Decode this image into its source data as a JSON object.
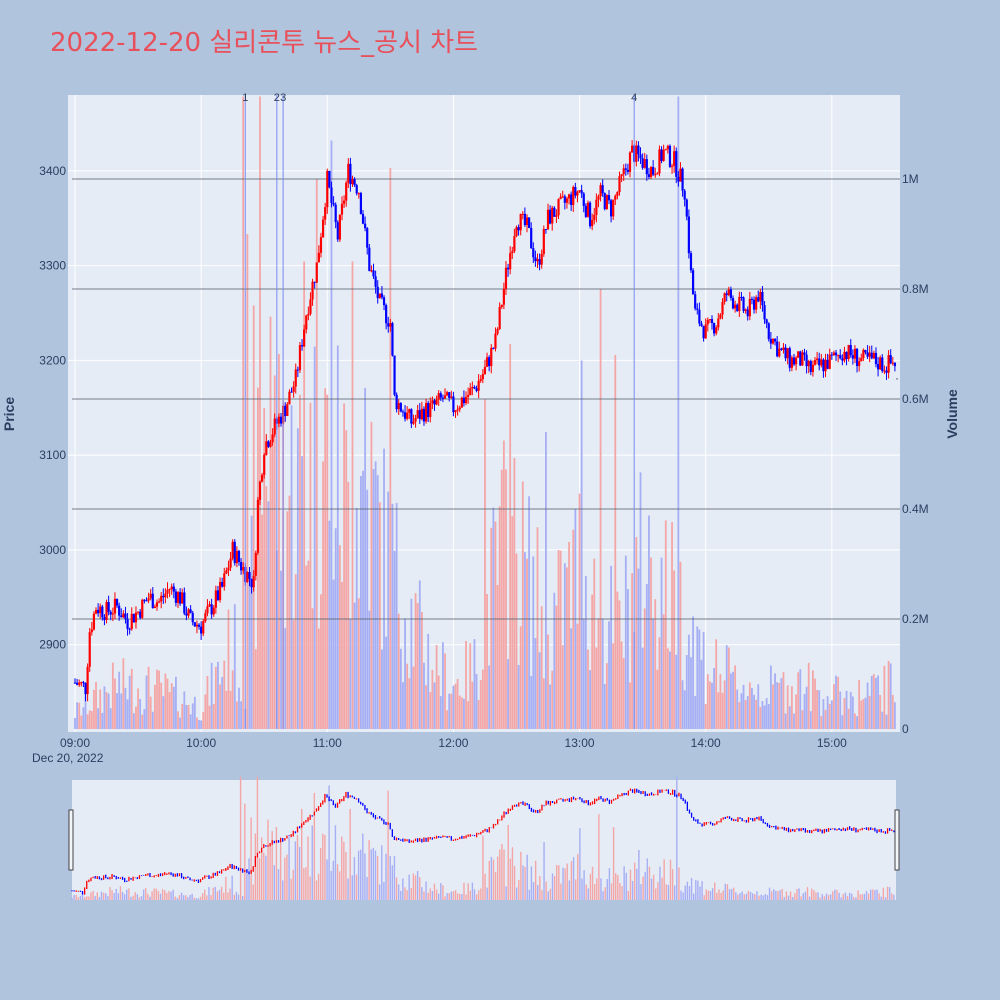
{
  "title": "2022-12-20 실리콘투 뉴스_공시 차트",
  "chart_data": {
    "type": "candlestick",
    "title": "2022-12-20 실리콘투 뉴스_공시 차트",
    "ylabel": "Price",
    "y2label": "Volume",
    "x_date_label": "Dec 20, 2022",
    "x_ticks": [
      "09:00",
      "10:00",
      "11:00",
      "12:00",
      "13:00",
      "14:00",
      "15:00"
    ],
    "y_ticks": [
      2900,
      3000,
      3100,
      3200,
      3300,
      3400
    ],
    "y2_ticks": [
      "0",
      "0.2M",
      "0.4M",
      "0.6M",
      "0.8M",
      "1M"
    ],
    "ylim": [
      2810,
      3480
    ],
    "y2lim": [
      0,
      1120000
    ],
    "xlim": [
      "09:00",
      "15:31"
    ],
    "up_color": "#ff0000",
    "down_color": "#0000ff",
    "vol_up_color": "#f4a6a6",
    "vol_down_color": "#a6aef4",
    "price_path": [
      [
        "09:00",
        2860
      ],
      [
        "09:05",
        2855
      ],
      [
        "09:07",
        2915
      ],
      [
        "09:10",
        2940
      ],
      [
        "09:15",
        2935
      ],
      [
        "09:20",
        2940
      ],
      [
        "09:25",
        2925
      ],
      [
        "09:30",
        2935
      ],
      [
        "09:35",
        2950
      ],
      [
        "09:40",
        2945
      ],
      [
        "09:45",
        2960
      ],
      [
        "09:50",
        2950
      ],
      [
        "09:55",
        2925
      ],
      [
        "10:00",
        2920
      ],
      [
        "10:05",
        2940
      ],
      [
        "10:10",
        2960
      ],
      [
        "10:15",
        3000
      ],
      [
        "10:20",
        2980
      ],
      [
        "10:25",
        2965
      ],
      [
        "10:27",
        3050
      ],
      [
        "10:30",
        3110
      ],
      [
        "10:35",
        3130
      ],
      [
        "10:40",
        3150
      ],
      [
        "10:45",
        3180
      ],
      [
        "10:50",
        3250
      ],
      [
        "10:55",
        3300
      ],
      [
        "11:00",
        3390
      ],
      [
        "11:05",
        3330
      ],
      [
        "11:10",
        3400
      ],
      [
        "11:15",
        3380
      ],
      [
        "11:20",
        3300
      ],
      [
        "11:25",
        3260
      ],
      [
        "11:30",
        3240
      ],
      [
        "11:32",
        3160
      ],
      [
        "11:40",
        3135
      ],
      [
        "11:45",
        3145
      ],
      [
        "11:50",
        3150
      ],
      [
        "11:55",
        3160
      ],
      [
        "12:00",
        3150
      ],
      [
        "12:05",
        3160
      ],
      [
        "12:10",
        3170
      ],
      [
        "12:15",
        3190
      ],
      [
        "12:20",
        3220
      ],
      [
        "12:25",
        3290
      ],
      [
        "12:30",
        3350
      ],
      [
        "12:35",
        3340
      ],
      [
        "12:40",
        3300
      ],
      [
        "12:45",
        3350
      ],
      [
        "12:50",
        3360
      ],
      [
        "12:55",
        3370
      ],
      [
        "13:00",
        3380
      ],
      [
        "13:05",
        3350
      ],
      [
        "13:10",
        3375
      ],
      [
        "13:15",
        3360
      ],
      [
        "13:20",
        3390
      ],
      [
        "13:25",
        3420
      ],
      [
        "13:30",
        3410
      ],
      [
        "13:35",
        3400
      ],
      [
        "13:40",
        3420
      ],
      [
        "13:45",
        3410
      ],
      [
        "13:50",
        3380
      ],
      [
        "13:53",
        3290
      ],
      [
        "13:55",
        3250
      ],
      [
        "14:00",
        3230
      ],
      [
        "14:05",
        3240
      ],
      [
        "14:10",
        3270
      ],
      [
        "14:15",
        3260
      ],
      [
        "14:20",
        3250
      ],
      [
        "14:25",
        3270
      ],
      [
        "14:30",
        3230
      ],
      [
        "14:35",
        3210
      ],
      [
        "14:40",
        3200
      ],
      [
        "14:45",
        3200
      ],
      [
        "14:50",
        3190
      ],
      [
        "14:55",
        3195
      ],
      [
        "15:00",
        3200
      ],
      [
        "15:05",
        3210
      ],
      [
        "15:10",
        3205
      ],
      [
        "15:15",
        3200
      ],
      [
        "15:20",
        3200
      ],
      [
        "15:25",
        3195
      ],
      [
        "15:30",
        3198
      ]
    ],
    "volume_path": [
      [
        "09:00",
        30000
      ],
      [
        "09:20",
        80000
      ],
      [
        "09:40",
        70000
      ],
      [
        "10:00",
        40000
      ],
      [
        "10:10",
        110000
      ],
      [
        "10:15",
        160000
      ],
      [
        "10:20",
        60000
      ],
      [
        "10:25",
        280000
      ],
      [
        "10:30",
        560000
      ],
      [
        "10:40",
        420000
      ],
      [
        "10:50",
        450000
      ],
      [
        "11:00",
        500000
      ],
      [
        "11:10",
        400000
      ],
      [
        "11:20",
        420000
      ],
      [
        "11:25",
        350000
      ],
      [
        "11:30",
        300000
      ],
      [
        "11:40",
        200000
      ],
      [
        "11:50",
        120000
      ],
      [
        "12:00",
        80000
      ],
      [
        "12:10",
        110000
      ],
      [
        "12:15",
        200000
      ],
      [
        "12:25",
        350000
      ],
      [
        "12:35",
        280000
      ],
      [
        "12:45",
        180000
      ],
      [
        "12:55",
        250000
      ],
      [
        "13:00",
        300000
      ],
      [
        "13:10",
        200000
      ],
      [
        "13:20",
        180000
      ],
      [
        "13:30",
        300000
      ],
      [
        "13:40",
        260000
      ],
      [
        "13:50",
        200000
      ],
      [
        "14:00",
        120000
      ],
      [
        "14:15",
        80000
      ],
      [
        "14:30",
        70000
      ],
      [
        "14:45",
        80000
      ],
      [
        "15:00",
        60000
      ],
      [
        "15:15",
        60000
      ],
      [
        "15:30",
        80000
      ]
    ],
    "volume_spikes": [
      [
        "10:20",
        1150000
      ],
      [
        "10:22",
        900000
      ],
      [
        "10:25",
        770000
      ],
      [
        "10:28",
        1150000
      ],
      [
        "10:33",
        750000
      ],
      [
        "10:49",
        850000
      ],
      [
        "10:55",
        1000000
      ],
      [
        "11:02",
        1070000
      ],
      [
        "11:12",
        850000
      ],
      [
        "11:18",
        620000
      ],
      [
        "11:30",
        1020000
      ],
      [
        "12:15",
        600000
      ],
      [
        "12:27",
        700000
      ],
      [
        "12:44",
        540000
      ],
      [
        "13:01",
        670000
      ],
      [
        "13:10",
        800000
      ],
      [
        "13:17",
        680000
      ],
      [
        "13:47",
        1150000
      ]
    ],
    "annotations": [
      {
        "label": "1",
        "time": "10:21"
      },
      {
        "label": "2",
        "time": "10:36"
      },
      {
        "label": "3",
        "time": "10:39"
      },
      {
        "label": "4",
        "time": "13:26"
      }
    ],
    "last_price_marker": "·"
  }
}
